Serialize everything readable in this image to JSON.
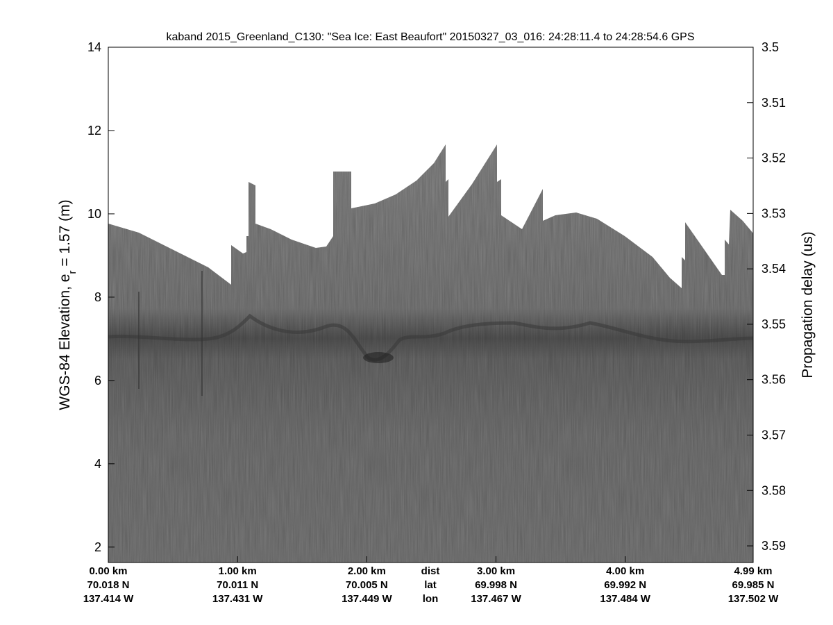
{
  "chart_data": {
    "type": "echogram",
    "title": "kaband 2015_Greenland_C130: \"Sea Ice: East Beaufort\"  20150327_03_016: 24:28:11.4 to 24:28:54.6 GPS",
    "ylabel": "WGS-84 Elevation, e",
    "ylabel_subscript": "r",
    "ylabel_suffix": " = 1.57 (m)",
    "y2label": "Propagation delay (us)",
    "ylim": [
      1.63,
      14
    ],
    "yticks": [
      2,
      4,
      6,
      8,
      10,
      12,
      14
    ],
    "y2lim": [
      3.5,
      3.593
    ],
    "y2ticks": [
      3.5,
      3.51,
      3.52,
      3.53,
      3.54,
      3.55,
      3.56,
      3.57,
      3.58,
      3.59
    ],
    "xlim": [
      0,
      4.99
    ],
    "xticks": [
      {
        "value": 0,
        "label": "0.00 km"
      },
      {
        "value": 1,
        "label": "1.00 km"
      },
      {
        "value": 2,
        "label": "2.00 km"
      },
      {
        "value": 3,
        "label": "3.00 km"
      },
      {
        "value": 4,
        "label": "4.00 km"
      },
      {
        "value": 4.99,
        "label": "4.99 km"
      }
    ],
    "xtick_lat": [
      "70.018 N",
      "70.011 N",
      "70.005 N",
      "69.998 N",
      "69.992 N",
      "69.985 N"
    ],
    "xtick_lon": [
      "137.414 W",
      "137.431 W",
      "137.449 W",
      "137.467 W",
      "137.484 W",
      "137.502 W"
    ],
    "row_labels": [
      "dist",
      "lat",
      "lon"
    ]
  }
}
